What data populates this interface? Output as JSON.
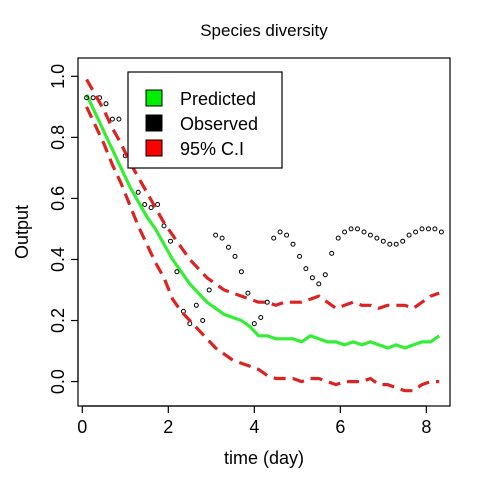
{
  "chart_data": {
    "type": "line",
    "title": "Species diversity",
    "xlabel": "time (day)",
    "ylabel": "Output",
    "xlim": [
      -0.1,
      8.55
    ],
    "ylim": [
      -0.08,
      1.06
    ],
    "x_ticks": [
      0,
      2,
      4,
      6,
      8
    ],
    "x_tick_labels": [
      "0",
      "2",
      "4",
      "6",
      "8"
    ],
    "y_ticks": [
      0.0,
      0.2,
      0.4,
      0.6,
      0.8,
      1.0
    ],
    "y_tick_labels": [
      "0.0",
      "0.2",
      "0.4",
      "0.6",
      "0.8",
      "1.0"
    ],
    "grid": false,
    "legend": {
      "placement": "top-center",
      "entries": [
        {
          "label": "Predicted",
          "color": "#00ee00"
        },
        {
          "label": "Observed",
          "color": "#000000"
        },
        {
          "label": "95% C.I",
          "color": "#ff0000"
        }
      ]
    },
    "series": [
      {
        "name": "Predicted",
        "style": "solid-line",
        "color": "#33ee33",
        "x": [
          0.1,
          0.3,
          0.5,
          0.7,
          0.9,
          1.1,
          1.3,
          1.5,
          1.7,
          1.9,
          2.1,
          2.3,
          2.5,
          2.7,
          2.9,
          3.1,
          3.3,
          3.5,
          3.7,
          3.9,
          4.1,
          4.3,
          4.5,
          4.7,
          4.9,
          5.1,
          5.3,
          5.5,
          5.7,
          5.9,
          6.1,
          6.3,
          6.5,
          6.7,
          6.9,
          7.1,
          7.3,
          7.5,
          7.7,
          7.9,
          8.1,
          8.3
        ],
        "values": [
          0.94,
          0.88,
          0.82,
          0.76,
          0.7,
          0.64,
          0.59,
          0.54,
          0.5,
          0.45,
          0.4,
          0.36,
          0.32,
          0.29,
          0.26,
          0.24,
          0.22,
          0.21,
          0.2,
          0.18,
          0.15,
          0.15,
          0.14,
          0.14,
          0.14,
          0.13,
          0.15,
          0.14,
          0.13,
          0.13,
          0.12,
          0.13,
          0.12,
          0.13,
          0.12,
          0.11,
          0.12,
          0.11,
          0.12,
          0.13,
          0.13,
          0.15
        ]
      },
      {
        "name": "Observed",
        "style": "open-circles",
        "color": "#000000",
        "x": [
          0.1,
          0.25,
          0.4,
          0.55,
          0.7,
          0.85,
          1.0,
          1.15,
          1.3,
          1.45,
          1.6,
          1.75,
          1.9,
          2.05,
          2.2,
          2.35,
          2.5,
          2.65,
          2.8,
          2.95,
          3.1,
          3.25,
          3.4,
          3.55,
          3.7,
          3.85,
          4.0,
          4.15,
          4.3,
          4.45,
          4.6,
          4.75,
          4.9,
          5.05,
          5.2,
          5.35,
          5.5,
          5.65,
          5.8,
          5.95,
          6.1,
          6.25,
          6.4,
          6.55,
          6.7,
          6.85,
          7.0,
          7.15,
          7.3,
          7.45,
          7.6,
          7.75,
          7.9,
          8.05,
          8.2,
          8.35
        ],
        "values": [
          0.93,
          0.93,
          0.93,
          0.91,
          0.86,
          0.86,
          0.74,
          0.71,
          0.62,
          0.58,
          0.57,
          0.58,
          0.51,
          0.46,
          0.36,
          0.23,
          0.19,
          0.25,
          0.2,
          0.3,
          0.48,
          0.47,
          0.44,
          0.41,
          0.36,
          0.29,
          0.19,
          0.21,
          0.26,
          0.47,
          0.49,
          0.48,
          0.45,
          0.41,
          0.37,
          0.34,
          0.32,
          0.35,
          0.42,
          0.47,
          0.49,
          0.5,
          0.5,
          0.49,
          0.48,
          0.47,
          0.46,
          0.45,
          0.45,
          0.46,
          0.48,
          0.49,
          0.5,
          0.5,
          0.5,
          0.49
        ]
      },
      {
        "name": "95% C.I",
        "style": "dashed-line",
        "color": "#dd2222",
        "x": [
          0.1,
          0.3,
          0.5,
          0.7,
          0.9,
          1.1,
          1.3,
          1.5,
          1.7,
          1.9,
          2.1,
          2.3,
          2.5,
          2.7,
          2.9,
          3.1,
          3.3,
          3.5,
          3.7,
          3.9,
          4.1,
          4.3,
          4.5,
          4.7,
          4.9,
          5.1,
          5.3,
          5.5,
          5.7,
          5.9,
          6.1,
          6.3,
          6.5,
          6.7,
          6.9,
          7.1,
          7.3,
          7.5,
          7.7,
          7.9,
          8.1,
          8.3
        ],
        "values": [
          0.99,
          0.94,
          0.89,
          0.83,
          0.78,
          0.72,
          0.67,
          0.62,
          0.57,
          0.52,
          0.48,
          0.44,
          0.4,
          0.37,
          0.34,
          0.32,
          0.3,
          0.29,
          0.28,
          0.27,
          0.26,
          0.26,
          0.25,
          0.26,
          0.26,
          0.26,
          0.27,
          0.28,
          0.26,
          0.24,
          0.25,
          0.26,
          0.25,
          0.25,
          0.24,
          0.25,
          0.25,
          0.25,
          0.24,
          0.26,
          0.28,
          0.29
        ]
      },
      {
        "name": "95% C.I",
        "style": "dashed-line",
        "color": "#dd2222",
        "x": [
          0.1,
          0.3,
          0.5,
          0.7,
          0.9,
          1.1,
          1.3,
          1.5,
          1.7,
          1.9,
          2.1,
          2.3,
          2.5,
          2.7,
          2.9,
          3.1,
          3.3,
          3.5,
          3.7,
          3.9,
          4.1,
          4.3,
          4.5,
          4.7,
          4.9,
          5.1,
          5.3,
          5.5,
          5.7,
          5.9,
          6.1,
          6.3,
          6.5,
          6.7,
          6.9,
          7.1,
          7.3,
          7.5,
          7.7,
          7.9,
          8.1,
          8.3
        ],
        "values": [
          0.9,
          0.84,
          0.78,
          0.71,
          0.65,
          0.58,
          0.51,
          0.45,
          0.39,
          0.34,
          0.27,
          0.23,
          0.2,
          0.17,
          0.14,
          0.11,
          0.09,
          0.07,
          0.06,
          0.05,
          0.04,
          0.02,
          0.01,
          0.01,
          0.01,
          0.0,
          0.01,
          0.01,
          0.0,
          -0.01,
          0.0,
          0.0,
          0.0,
          0.01,
          -0.01,
          -0.01,
          -0.02,
          -0.03,
          -0.03,
          -0.01,
          0.0,
          0.0
        ]
      }
    ]
  }
}
